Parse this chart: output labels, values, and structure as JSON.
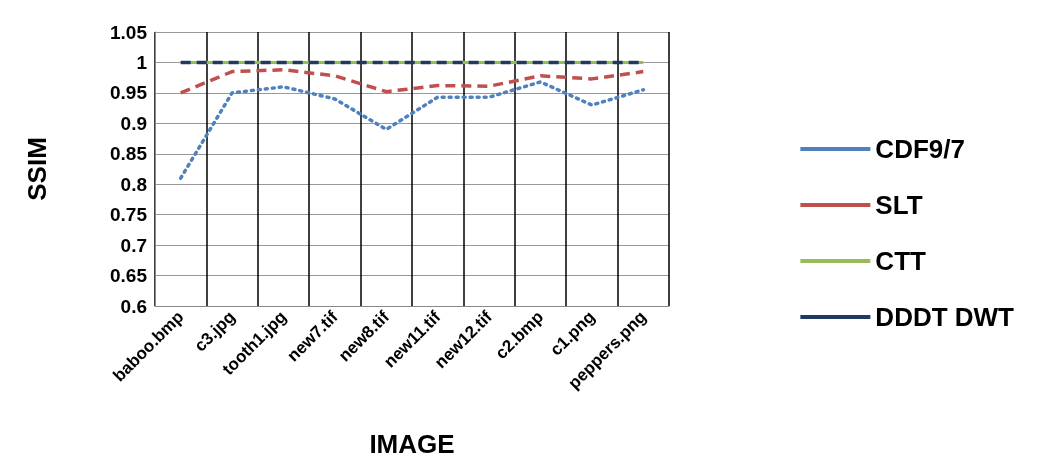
{
  "chart_data": {
    "type": "line",
    "xlabel": "IMAGE",
    "ylabel": "SSIM",
    "categories": [
      "baboo.bmp",
      "c3.jpg",
      "tooth1.jpg",
      "new7.tif",
      "new8.tif",
      "new11.tif",
      "new12.tif",
      "c2.bmp",
      "c1.png",
      "peppers.png"
    ],
    "series": [
      {
        "name": "CDF9/7",
        "color": "#4f81bd",
        "line_style": "dotted",
        "values": [
          0.81,
          0.95,
          0.96,
          0.94,
          0.89,
          0.943,
          0.943,
          0.968,
          0.93,
          0.955
        ]
      },
      {
        "name": "SLT",
        "color": "#c0504d",
        "line_style": "dashed",
        "values": [
          0.95,
          0.985,
          0.988,
          0.978,
          0.952,
          0.962,
          0.961,
          0.978,
          0.973,
          0.985
        ]
      },
      {
        "name": "CTT",
        "color": "#9bbb59",
        "line_style": "solid",
        "values": [
          1,
          1,
          1,
          1,
          1,
          1,
          1,
          1,
          1,
          1
        ]
      },
      {
        "name": "DDDT DWT",
        "color": "#1f3864",
        "line_style": "dashed",
        "values": [
          1,
          1,
          1,
          1,
          1,
          1,
          1,
          1,
          1,
          1
        ]
      }
    ],
    "ylim": [
      0.6,
      1.05
    ],
    "yticks": [
      0.6,
      0.65,
      0.7,
      0.75,
      0.8,
      0.85,
      0.9,
      0.95,
      1,
      1.05
    ],
    "grid": true,
    "legend": "right",
    "marker": "none"
  }
}
